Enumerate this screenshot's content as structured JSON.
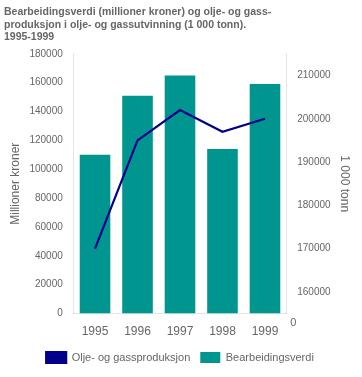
{
  "chart_data": {
    "type": "bar",
    "title": [
      "Bearbeidingsverdi (millioner kroner) og olje- og gass-",
      "produksjon i olje- og gassutvinning (1 000 tonn).",
      "1995-1999"
    ],
    "categories": [
      "1995",
      "1996",
      "1997",
      "1998",
      "1999"
    ],
    "series": [
      {
        "name": "Bearbeidingsverdi",
        "type": "bar",
        "color": "#00968F",
        "values": [
          110000,
          151000,
          165000,
          114000,
          159000
        ]
      },
      {
        "name": "Olje- og gassproduksjon",
        "type": "line",
        "axis": "y2",
        "color": "#00008B",
        "values": [
          170000,
          195000,
          202000,
          197000,
          200000
        ]
      }
    ],
    "ylabel": "Millioner kroner",
    "y2label": "1 000 tonn",
    "ylim": [
      0,
      180000
    ],
    "yticks": [
      0,
      20000,
      40000,
      60000,
      80000,
      100000,
      120000,
      140000,
      160000,
      180000
    ],
    "y2lim": [
      155000,
      215000
    ],
    "y2ticks": [
      160000,
      170000,
      180000,
      190000,
      200000,
      210000
    ],
    "grid": false,
    "legend": "bottom",
    "annotations": [
      {
        "text": "0"
      }
    ]
  }
}
